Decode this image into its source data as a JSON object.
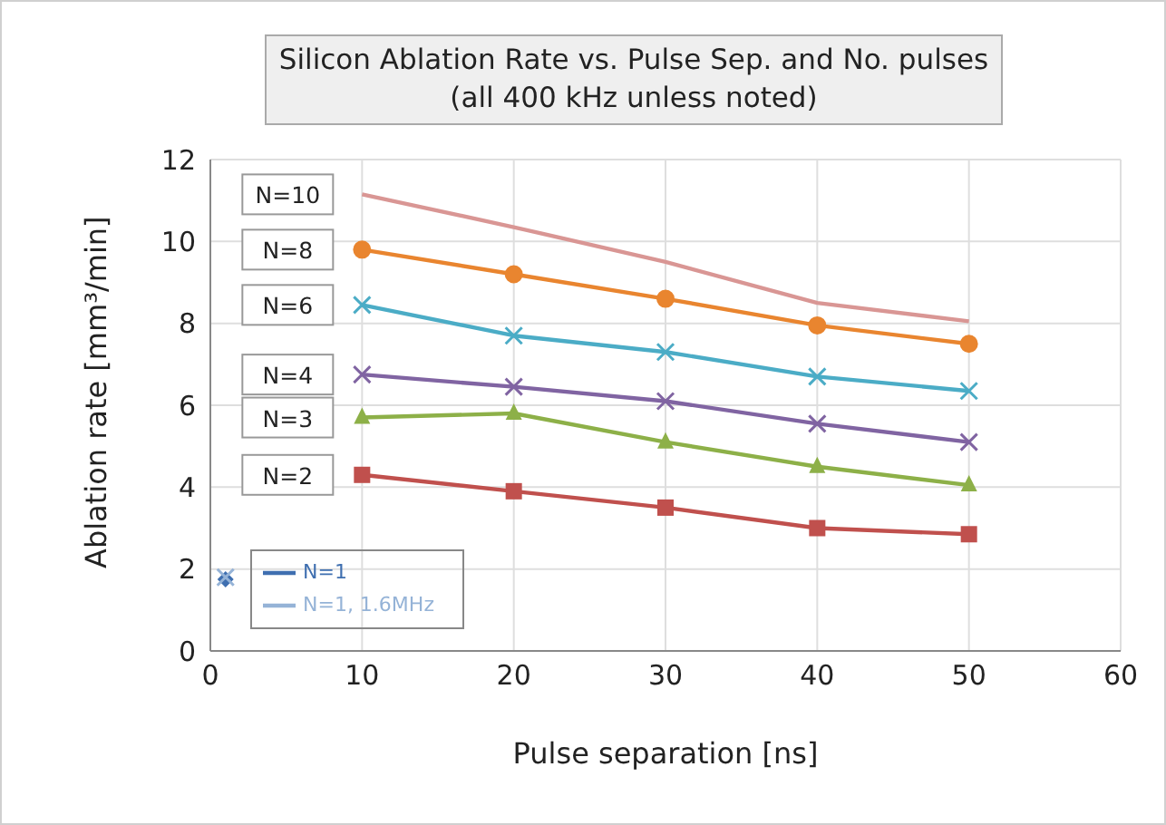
{
  "chart_data": {
    "type": "line",
    "title": "Silicon Ablation Rate vs. Pulse Sep. and No. pulses",
    "subtitle": "(all 400 kHz unless noted)",
    "xlabel": "Pulse separation [ns]",
    "ylabel": "Ablation rate [mm³/min]",
    "xlim": [
      0,
      60
    ],
    "xticks": [
      0,
      10,
      20,
      30,
      40,
      50,
      60
    ],
    "ylim": [
      0,
      12
    ],
    "yticks": [
      0,
      2,
      4,
      6,
      8,
      10,
      12
    ],
    "grid": true,
    "legend": "left",
    "x": [
      10,
      20,
      30,
      40,
      50
    ],
    "series": [
      {
        "name": "N=10",
        "color": "#d99694",
        "marker": "none",
        "values": [
          11.15,
          10.35,
          9.5,
          8.5,
          8.05
        ]
      },
      {
        "name": "N=8",
        "color": "#e9852f",
        "marker": "circle",
        "values": [
          9.8,
          9.2,
          8.6,
          7.95,
          7.5
        ]
      },
      {
        "name": "N=6",
        "color": "#4bacc6",
        "marker": "cross",
        "values": [
          8.45,
          7.7,
          7.3,
          6.7,
          6.35
        ]
      },
      {
        "name": "N=4",
        "color": "#8064a2",
        "marker": "cross",
        "values": [
          6.75,
          6.45,
          6.1,
          5.55,
          5.1
        ]
      },
      {
        "name": "N=3",
        "color": "#8db048",
        "marker": "triangle",
        "values": [
          5.7,
          5.8,
          5.1,
          4.5,
          4.05
        ]
      },
      {
        "name": "N=2",
        "color": "#c0504d",
        "marker": "square",
        "values": [
          4.3,
          3.9,
          3.5,
          3.0,
          2.85
        ]
      },
      {
        "name": "N=1",
        "color": "#3f6fb0",
        "marker": "diamond",
        "x": [
          1
        ],
        "values": [
          1.75
        ]
      },
      {
        "name": "N=1, 1.6MHz",
        "color": "#95b3d7",
        "marker": "cross",
        "x": [
          1
        ],
        "values": [
          1.8
        ]
      }
    ]
  }
}
